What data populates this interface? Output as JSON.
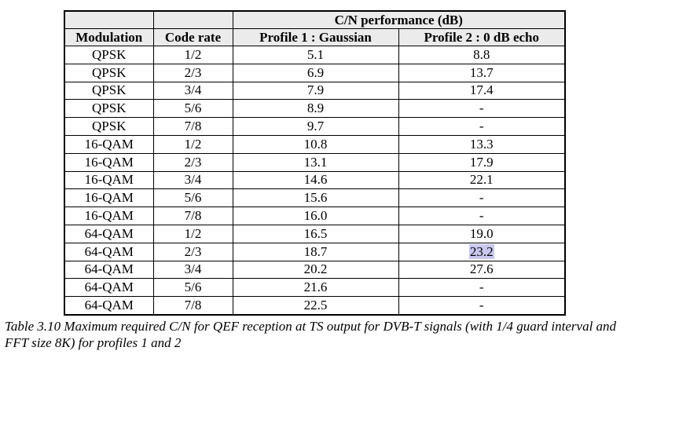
{
  "table": {
    "group_header": "C/N performance (dB)",
    "columns": [
      "Modulation",
      "Code rate",
      "Profile 1 : Gaussian",
      "Profile 2 : 0 dB echo"
    ],
    "rows": [
      [
        "QPSK",
        "1/2",
        "5.1",
        "8.8"
      ],
      [
        "QPSK",
        "2/3",
        "6.9",
        "13.7"
      ],
      [
        "QPSK",
        "3/4",
        "7.9",
        "17.4"
      ],
      [
        "QPSK",
        "5/6",
        "8.9",
        "-"
      ],
      [
        "QPSK",
        "7/8",
        "9.7",
        "-"
      ],
      [
        "16-QAM",
        "1/2",
        "10.8",
        "13.3"
      ],
      [
        "16-QAM",
        "2/3",
        "13.1",
        "17.9"
      ],
      [
        "16-QAM",
        "3/4",
        "14.6",
        "22.1"
      ],
      [
        "16-QAM",
        "5/6",
        "15.6",
        "-"
      ],
      [
        "16-QAM",
        "7/8",
        "16.0",
        "-"
      ],
      [
        "64-QAM",
        "1/2",
        "16.5",
        "19.0"
      ],
      [
        "64-QAM",
        "2/3",
        "18.7",
        "23.2"
      ],
      [
        "64-QAM",
        "3/4",
        "20.2",
        "27.6"
      ],
      [
        "64-QAM",
        "5/6",
        "21.6",
        "-"
      ],
      [
        "64-QAM",
        "7/8",
        "22.5",
        "-"
      ]
    ],
    "highlighted_cell": {
      "row": 11,
      "col": 3
    }
  },
  "caption": "Table 3.10 Maximum required C/N for QEF reception at TS output for DVB-T signals (with 1/4 guard interval and FFT size 8K) for profiles 1 and 2",
  "colors": {
    "header_bg": "#ebebeb",
    "highlight_bg": "#c9c9f0"
  }
}
